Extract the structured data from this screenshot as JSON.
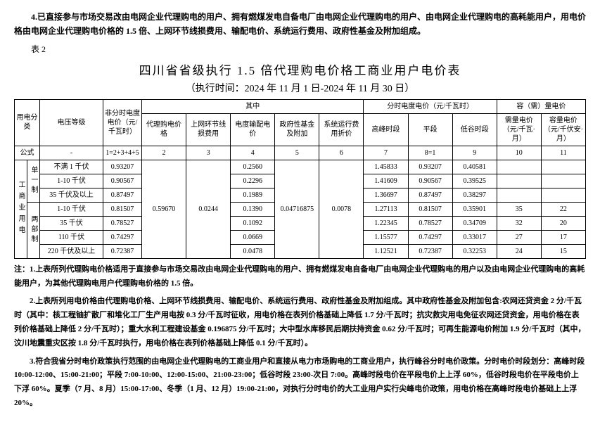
{
  "intro_para": "4.已直接参与市场交易改由电网企业代理购电的用户、拥有燃煤发电自备电厂由电网企业代理购电的用户、由电网企业代理购电的高耗能用户，用电价格由电网企业代理购电价格的 1.5 倍、上网环节线损费用、输配电价、系统运行费用、政府性基金及附加组成。",
  "table_label": "表 2",
  "title": "四川省省级执行 1.5 倍代理购电价格工商业用户电价表",
  "subtitle": "（执行时间：2024 年 11 月 1 日-2024 年 11 月 30 日）",
  "headers": {
    "cat": "用电分类",
    "volt": "电压等级",
    "nonpeak": "非分时电度电价（元/千瓦时）",
    "qizhong": "其中",
    "agent": "代理购电价格",
    "loss": "上网环节线损费用",
    "trans": "电度输配电价",
    "gov": "政府性基金及附加",
    "sys": "系统运行费用折价",
    "tou": "分时电度电价（元/千瓦时）",
    "peak": "高峰时段",
    "flat": "平段",
    "valley": "低谷时段",
    "cap": "容（需）量电价",
    "demand": "需量电价（元/千瓦·月）",
    "capacity": "容量电价（元/千伏安·月）",
    "formula": "公式",
    "dash": "-",
    "f1": "1=2+3+4+5",
    "f2": "2",
    "f3": "3",
    "f4": "4",
    "f5": "5",
    "f6": "6",
    "f7": "7",
    "f8": "8=1",
    "f9": "9",
    "f10": "10",
    "f11": "11"
  },
  "cat_main": "工商业用电",
  "sub1": "单一制",
  "sub2": "两部制",
  "rows": [
    {
      "volt": "不满 1 千伏",
      "nonpeak": "0.93207",
      "trans": "0.2560",
      "peak": "1.45833",
      "flat": "0.93207",
      "valley": "0.40581",
      "demand": "",
      "capacity": ""
    },
    {
      "volt": "1-10 千伏",
      "nonpeak": "0.90567",
      "trans": "0.2296",
      "peak": "1.41609",
      "flat": "0.90567",
      "valley": "0.39525",
      "demand": "",
      "capacity": ""
    },
    {
      "volt": "35 千伏及以上",
      "nonpeak": "0.87497",
      "trans": "0.1989",
      "peak": "1.36697",
      "flat": "0.87497",
      "valley": "0.38297",
      "demand": "",
      "capacity": ""
    },
    {
      "volt": "1-10 千伏",
      "nonpeak": "0.81507",
      "trans": "0.1390",
      "peak": "1.27113",
      "flat": "0.81507",
      "valley": "0.35901",
      "demand": "35",
      "capacity": "22"
    },
    {
      "volt": "35 千伏",
      "nonpeak": "0.78527",
      "trans": "0.1092",
      "peak": "1.22345",
      "flat": "0.78527",
      "valley": "0.34709",
      "demand": "32",
      "capacity": "20"
    },
    {
      "volt": "110 千伏",
      "nonpeak": "0.74297",
      "trans": "0.0669",
      "peak": "1.15577",
      "flat": "0.74297",
      "valley": "0.33017",
      "demand": "27",
      "capacity": "17"
    },
    {
      "volt": "220 千伏及以上",
      "nonpeak": "0.72387",
      "trans": "0.0478",
      "peak": "1.12521",
      "flat": "0.72387",
      "valley": "0.32253",
      "demand": "24",
      "capacity": "15"
    }
  ],
  "shared": {
    "agent": "0.59670",
    "loss": "0.0244",
    "gov": "0.04716875",
    "sys": "0.0078"
  },
  "notes": {
    "n1": "注：1.上表所列代理购电价格适用于直接参与市场交易改由电网企业代理购电的用户、拥有燃煤发电自备电厂由电网企业代理购电的用户以及由电网企业代理购电的高耗能用户，为其他代理购电用户代理购电价格的 1.5 倍。",
    "n2": "2.上表所列用电价格由代理购电价格、上网环节线损费用、输配电价、系统运行费用、政府性基金及附加组成。其中政府性基金及附加包含:农网还贷资金 2 分/千瓦时（其中：核工程铀扩散厂和堆化工厂生产用电按 0.3 分/千瓦时征收，用电价格在表列价格基础上降低 1.7 分/千瓦时；抗灾救灾用电免征农网还贷资金，用电价格在表列价格基础上降低 2 分/千瓦时）；重大水利工程建设基金 0.196875 分/千瓦时；大中型水库移民后期扶持资金 0.62 分/千瓦时；可再生能源电价附加 1.9 分/千瓦时（其中，汶川地震重灾区按 1.8 分/千瓦时执行，用电价格在表列价格基础上降低 0.1 分/千瓦时）。",
    "n3": "3.符合我省分时电价政策执行范围的由电网企业代理购电的工商业用户和直接从电力市场购电的工商业用户，执行峰谷分时电价政策。分时电价时段划分：高峰时段 10:00-12:00、15:00-21:00；平段 7:00-10:00、12:00-15:00、21:00-23:00；低谷时段 23:00-次日 7:00。高峰时段电价在平段电价上上浮 60%，低谷时段电价在平段电价上下浮 60%。夏季（7 月、8 月）15:00-17:00、冬季（1 月、12 月）19:00-21:00，对执行分时电价的大工业用户实行尖峰电价政策，用电价格在高峰时段电价基础上上浮 20%。"
  }
}
